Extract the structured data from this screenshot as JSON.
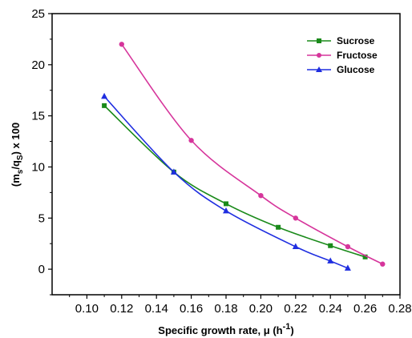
{
  "chart_data": {
    "type": "line",
    "xlabel": "Specific growth rate, μ (h",
    "xlabel_sup": "-1",
    "xlabel_tail": ")",
    "ylabel": "(m",
    "ylabel_sub1": "s",
    "ylabel_mid": "/q",
    "ylabel_sub2": "S",
    "ylabel_tail": ") x 100",
    "xlim": [
      0.08,
      0.28
    ],
    "ylim": [
      -2.5,
      25
    ],
    "x_ticks": [
      "0.10",
      "0.12",
      "0.14",
      "0.16",
      "0.18",
      "0.20",
      "0.22",
      "0.24",
      "0.26",
      "0.28"
    ],
    "y_ticks": [
      "0",
      "5",
      "10",
      "15",
      "20",
      "25"
    ],
    "grid": false,
    "legend_position": "top-right",
    "series": [
      {
        "name": "Sucrose",
        "color": "#1a8a1a",
        "marker": "square",
        "x": [
          0.11,
          0.15,
          0.18,
          0.21,
          0.24,
          0.26
        ],
        "y": [
          16.0,
          9.5,
          6.4,
          4.1,
          2.3,
          1.2
        ]
      },
      {
        "name": "Fructose",
        "color": "#d6359b",
        "marker": "circle",
        "x": [
          0.12,
          0.16,
          0.2,
          0.22,
          0.25,
          0.27
        ],
        "y": [
          22.0,
          12.6,
          7.2,
          5.0,
          2.2,
          0.5
        ]
      },
      {
        "name": "Glucose",
        "color": "#1f2ee0",
        "marker": "triangle",
        "x": [
          0.11,
          0.15,
          0.18,
          0.22,
          0.24,
          0.25
        ],
        "y": [
          16.9,
          9.5,
          5.7,
          2.2,
          0.8,
          0.1
        ]
      }
    ]
  }
}
